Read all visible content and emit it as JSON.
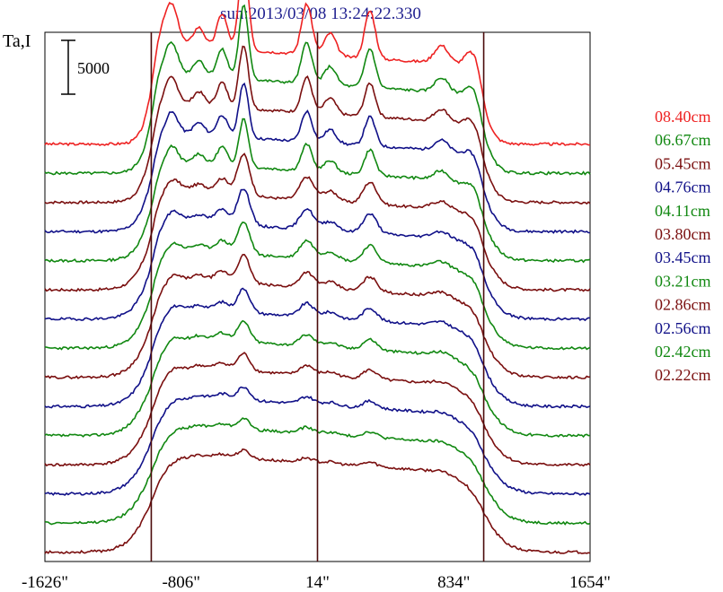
{
  "chart_data": {
    "type": "line",
    "title": "sun:2013/03/08 13:24:22.330",
    "ylabel": "Ta,I",
    "xlabel": "",
    "x_ticks": [
      {
        "value": -1626,
        "label": "-1626\""
      },
      {
        "value": -806,
        "label": "-806\""
      },
      {
        "value": 14,
        "label": "14\""
      },
      {
        "value": 834,
        "label": "834\""
      },
      {
        "value": 1654,
        "label": "1654\""
      }
    ],
    "xlim": [
      -1626,
      1654
    ],
    "vertical_markers": [
      -986,
      14,
      1014
    ],
    "scale_bar": {
      "value": 5000,
      "label": "5000"
    },
    "offset_step": 1570,
    "ylim": [
      -500,
      28000
    ],
    "colors": {
      "red": "#ee2222",
      "green": "#118811",
      "maroon": "#7a0f0f",
      "blue": "#101088",
      "marker": "#4a0b0b"
    },
    "series": [
      {
        "name": "08.40cm",
        "color": "#ee2222",
        "peak_scale": 1.35,
        "sharp": 1.6,
        "noise_seed": 3
      },
      {
        "name": "06.67cm",
        "color": "#118811",
        "peak_scale": 1.1,
        "sharp": 1.4,
        "noise_seed": 5
      },
      {
        "name": "05.45cm",
        "color": "#7a0f0f",
        "peak_scale": 0.95,
        "sharp": 1.3,
        "noise_seed": 7
      },
      {
        "name": "04.76cm",
        "color": "#101088",
        "peak_scale": 0.82,
        "sharp": 1.2,
        "noise_seed": 11
      },
      {
        "name": "04.11cm",
        "color": "#118811",
        "peak_scale": 0.72,
        "sharp": 1.1,
        "noise_seed": 13
      },
      {
        "name": "03.80cm",
        "color": "#7a0f0f",
        "peak_scale": 0.62,
        "sharp": 1.0,
        "noise_seed": 17
      },
      {
        "name": "03.45cm",
        "color": "#101088",
        "peak_scale": 0.55,
        "sharp": 1.0,
        "noise_seed": 19
      },
      {
        "name": "03.21cm",
        "color": "#118811",
        "peak_scale": 0.48,
        "sharp": 0.95,
        "noise_seed": 23
      },
      {
        "name": "02.86cm",
        "color": "#7a0f0f",
        "peak_scale": 0.42,
        "sharp": 0.9,
        "noise_seed": 29
      },
      {
        "name": "02.56cm",
        "color": "#101088",
        "peak_scale": 0.36,
        "sharp": 0.9,
        "noise_seed": 31
      },
      {
        "name": "02.42cm",
        "color": "#118811",
        "peak_scale": 0.3,
        "sharp": 0.85,
        "noise_seed": 37
      },
      {
        "name": "02.22cm",
        "color": "#7a0f0f",
        "peak_scale": 0.26,
        "sharp": 0.85,
        "noise_seed": 41
      }
    ],
    "extra_traces": [
      {
        "color": "#101088",
        "peak_scale": 0.2,
        "sharp": 0.8,
        "noise_seed": 43
      },
      {
        "color": "#118811",
        "peak_scale": 0.16,
        "sharp": 0.8,
        "noise_seed": 47
      },
      {
        "color": "#7a0f0f",
        "peak_scale": 0.12,
        "sharp": 0.8,
        "noise_seed": 53
      }
    ],
    "grid": false,
    "legend_position": "right"
  }
}
